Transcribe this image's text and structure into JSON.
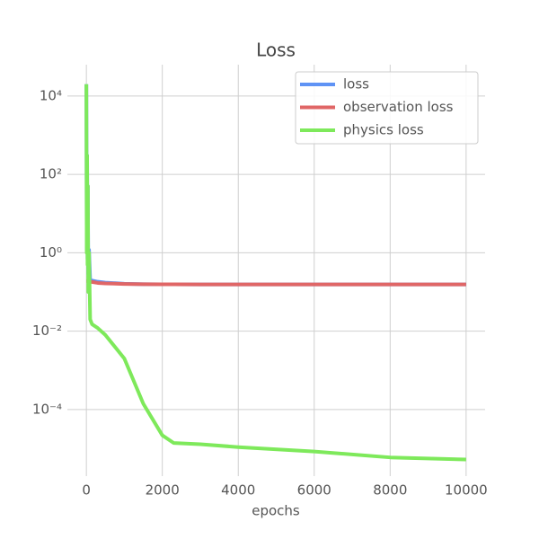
{
  "chart_data": {
    "type": "line",
    "title": "Loss",
    "xlabel": "epochs",
    "x": [
      0,
      10,
      20,
      30,
      40,
      50,
      70,
      100,
      150,
      300,
      500,
      1000,
      1500,
      2000,
      2300,
      3000,
      4000,
      6000,
      8000,
      10000
    ],
    "series": [
      {
        "name": "loss",
        "color": "#5f93f5",
        "values": [
          20000,
          1.19,
          300,
          0.69,
          50,
          0.29,
          1.19,
          0.2,
          0.195,
          0.182,
          0.173,
          0.162,
          0.158,
          0.157,
          0.157,
          0.156,
          0.156,
          0.156,
          0.156,
          0.156
        ]
      },
      {
        "name": "observation loss",
        "color": "#e06666",
        "values": [
          0.19,
          0.19,
          0.19,
          0.19,
          0.19,
          0.19,
          0.19,
          0.18,
          0.18,
          0.17,
          0.165,
          0.16,
          0.158,
          0.157,
          0.157,
          0.156,
          0.156,
          0.156,
          0.156,
          0.156
        ]
      },
      {
        "name": "physics loss",
        "color": "#7ee95b",
        "values": [
          20000,
          1,
          300,
          0.5,
          50,
          0.1,
          1,
          0.02,
          0.015,
          0.012,
          0.008,
          0.002,
          0.00014,
          2.2e-05,
          1.4e-05,
          1.3e-05,
          1.1e-05,
          8.5e-06,
          6e-06,
          5.3e-06
        ]
      }
    ],
    "xlim": [
      -500,
      10500
    ],
    "xticks": [
      0,
      2000,
      4000,
      6000,
      8000,
      10000
    ],
    "ylim": [
      2e-06,
      63000
    ],
    "yscale": "log",
    "yticks": [
      {
        "value": 10000,
        "label": "10⁴"
      },
      {
        "value": 100,
        "label": "10²"
      },
      {
        "value": 1,
        "label": "10⁰"
      },
      {
        "value": 0.01,
        "label": "10⁻²"
      },
      {
        "value": 0.0001,
        "label": "10⁻⁴"
      }
    ],
    "grid": true,
    "legend": "upper right"
  }
}
